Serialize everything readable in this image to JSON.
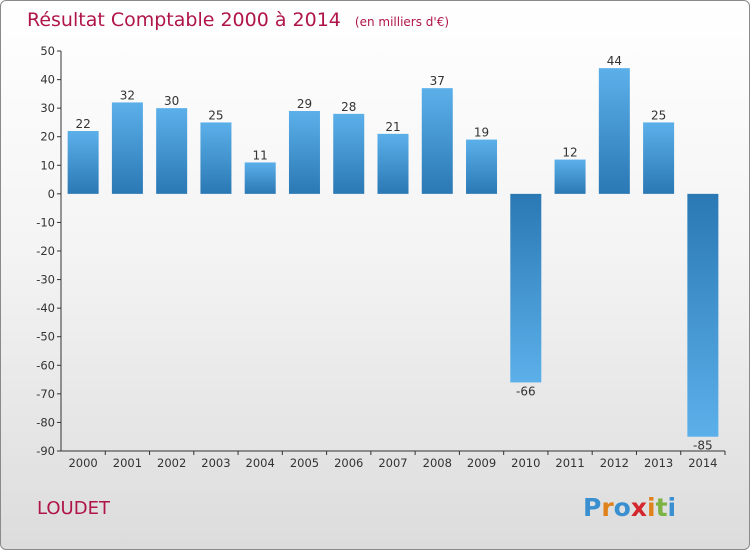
{
  "chart_data": {
    "type": "bar",
    "title": "Résultat Comptable 2000 à 2014",
    "subtitle": "(en milliers d'€)",
    "categories": [
      "2000",
      "2001",
      "2002",
      "2003",
      "2004",
      "2005",
      "2006",
      "2007",
      "2008",
      "2009",
      "2010",
      "2011",
      "2012",
      "2013",
      "2014"
    ],
    "values": [
      22,
      32,
      30,
      25,
      11,
      29,
      28,
      21,
      37,
      19,
      -66,
      12,
      44,
      25,
      -85
    ],
    "ylim": [
      -90,
      50
    ],
    "yticks": [
      50,
      40,
      30,
      20,
      10,
      0,
      -10,
      -20,
      -30,
      -40,
      -50,
      -60,
      -70,
      -80,
      -90
    ],
    "ytick_labels": [
      "50",
      "40",
      "30",
      "20",
      "10",
      "0",
      "-10",
      "-20",
      "-30",
      "-40",
      "-50",
      "-60",
      "-70",
      "-80",
      "-90"
    ],
    "xlabel": "",
    "ylabel": "",
    "grid": false,
    "legend": "none",
    "bar_color_dark": "#2a78b4",
    "bar_color_light": "#5cb0ea"
  },
  "commune": "LOUDET",
  "logo": {
    "letters": [
      "P",
      "r",
      "o",
      "x",
      "i",
      "t",
      "i"
    ],
    "colors": [
      "#3a8fd0",
      "#e0821c",
      "#3a8fd0",
      "#d4262e",
      "#e0821c",
      "#7cb342",
      "#3a8fd0"
    ]
  }
}
